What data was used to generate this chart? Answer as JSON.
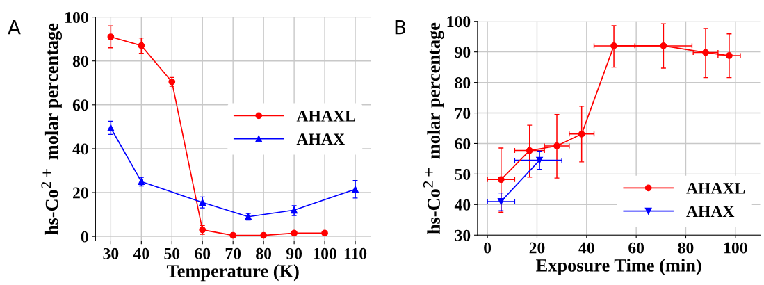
{
  "chart_data": [
    {
      "type": "line",
      "xlabel": "Temperature (K)",
      "ylabel": "hs-Co$^{2+}$ molar percentage",
      "annotations": [
        "A"
      ],
      "xlim": [
        25,
        115
      ],
      "xticks": [
        30,
        40,
        50,
        60,
        70,
        80,
        90,
        100,
        110
      ],
      "ylim": [
        -2,
        100
      ],
      "yticks": [
        0,
        20,
        40,
        60,
        80,
        100
      ],
      "grid": true,
      "legend": "right",
      "series": [
        {
          "name": "AHAXL",
          "color": "#ff0000",
          "marker": "circle",
          "x": [
            30,
            40,
            50,
            60,
            70,
            80,
            90,
            100
          ],
          "values": [
            91,
            87,
            70.5,
            3,
            0.5,
            0.5,
            1.5,
            1.5
          ],
          "errors": [
            [
              86,
              96
            ],
            [
              83.5,
              90.5
            ],
            [
              68.5,
              72.5
            ],
            [
              1,
              5
            ],
            null,
            null,
            null,
            null
          ]
        },
        {
          "name": "AHAX",
          "color": "#0000ff",
          "marker": "triangle",
          "x": [
            30,
            40,
            60,
            75,
            90,
            110
          ],
          "values": [
            49.5,
            25,
            15.5,
            9,
            12,
            21.5
          ],
          "errors": [
            [
              46.5,
              52.5
            ],
            [
              23,
              27
            ],
            [
              13,
              18
            ],
            [
              7.5,
              10.5
            ],
            [
              9.5,
              14
            ],
            [
              17.5,
              25.5
            ]
          ]
        }
      ]
    },
    {
      "type": "line",
      "xlabel": "Exposure Time (min)",
      "ylabel": "hs-Co$^{2+}$ molar percentage",
      "annotations": [
        "B"
      ],
      "xlim": [
        -4,
        110
      ],
      "xticks": [
        0,
        20,
        40,
        60,
        80,
        100
      ],
      "ylim": [
        30,
        100
      ],
      "yticks": [
        30,
        40,
        50,
        60,
        70,
        80,
        90,
        100
      ],
      "grid": true,
      "legend": "bottom right",
      "series": [
        {
          "name": "AHAXL",
          "color": "#ff0000",
          "marker": "circle",
          "x": [
            5.5,
            17,
            28,
            38,
            51,
            71,
            88,
            97.5
          ],
          "values": [
            48.2,
            57.7,
            59.2,
            63.1,
            92,
            92,
            89.8,
            88.8
          ],
          "errors": [
            [
              37.5,
              58.5
            ],
            [
              49,
              66
            ],
            [
              48.7,
              69.5
            ],
            [
              54,
              72.2
            ],
            [
              85,
              98.6
            ],
            [
              84.7,
              99.2
            ],
            [
              81.6,
              97.7
            ],
            [
              81.6,
              95.9
            ]
          ],
          "xerrors": [
            [
              0,
              11
            ],
            [
              11,
              23
            ],
            [
              23,
              33
            ],
            [
              33,
              43
            ],
            [
              43,
              59.5
            ],
            [
              59.5,
              82.5
            ],
            [
              83,
              93
            ],
            [
              93,
              102
            ]
          ]
        },
        {
          "name": "AHAX",
          "color": "#0000ff",
          "marker": "triangle_down",
          "x": [
            5.5,
            21
          ],
          "values": [
            41,
            54.5
          ],
          "errors": [
            [
              38,
              43.8
            ],
            [
              51.5,
              57.5
            ]
          ],
          "xerrors": [
            [
              0,
              11
            ],
            [
              11,
              30
            ]
          ]
        }
      ]
    }
  ]
}
